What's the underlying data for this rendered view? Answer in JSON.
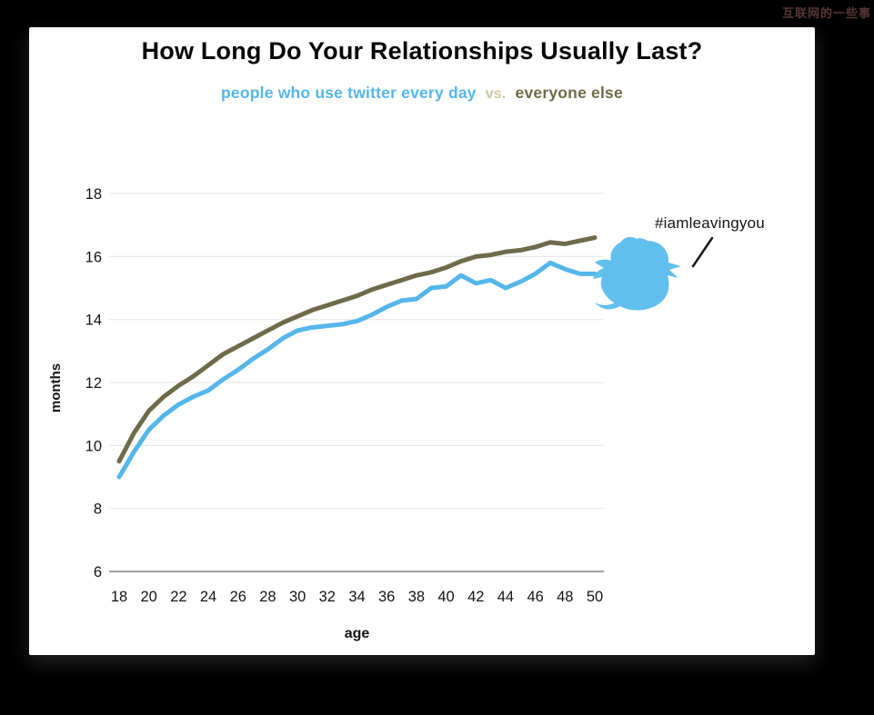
{
  "watermark": "互联网的一些事",
  "title": "How Long Do Your Relationships Usually Last?",
  "subtitle": {
    "twitter_label": "people who use twitter every day",
    "vs_label": "vs.",
    "else_label": "everyone else"
  },
  "annotation": {
    "hashtag": "#iamleavingyou"
  },
  "colors": {
    "twitter_line": "#55b6ea",
    "everyone_line": "#6f6b4a",
    "vs_text": "#ccc5a3",
    "gridline": "#e8e8e8",
    "axis_line": "#8a8a8a",
    "tick_text": "#141414",
    "bird_blue": "#61bfee",
    "pointer_line": "#1a1a1a"
  },
  "chart_data": {
    "type": "line",
    "title": "How Long Do Your Relationships Usually Last?",
    "xlabel": "age",
    "ylabel": "months",
    "x": [
      18,
      19,
      20,
      21,
      22,
      23,
      24,
      25,
      26,
      27,
      28,
      29,
      30,
      31,
      32,
      33,
      34,
      35,
      36,
      37,
      38,
      39,
      40,
      41,
      42,
      43,
      44,
      45,
      46,
      47,
      48,
      49,
      50
    ],
    "series": [
      {
        "name": "everyone else",
        "color": "#6f6b4a",
        "values": [
          9.5,
          10.4,
          11.1,
          11.55,
          11.9,
          12.2,
          12.55,
          12.9,
          13.15,
          13.4,
          13.65,
          13.9,
          14.1,
          14.3,
          14.45,
          14.6,
          14.75,
          14.95,
          15.1,
          15.25,
          15.4,
          15.5,
          15.65,
          15.85,
          16.0,
          16.05,
          16.15,
          16.2,
          16.3,
          16.45,
          16.4,
          16.5,
          16.6
        ]
      },
      {
        "name": "people who use twitter every day",
        "color": "#55b6ea",
        "values": [
          9.0,
          9.8,
          10.5,
          10.95,
          11.3,
          11.55,
          11.75,
          12.1,
          12.4,
          12.75,
          13.05,
          13.4,
          13.65,
          13.75,
          13.8,
          13.85,
          13.95,
          14.15,
          14.4,
          14.6,
          14.65,
          15.0,
          15.05,
          15.4,
          15.15,
          15.25,
          15.0,
          15.2,
          15.45,
          15.8,
          15.6,
          15.45,
          15.45
        ]
      }
    ],
    "ylim": [
      6,
      18
    ],
    "yticks": [
      6,
      8,
      10,
      12,
      14,
      16,
      18
    ],
    "xticks": [
      18,
      20,
      22,
      24,
      26,
      28,
      30,
      32,
      34,
      36,
      38,
      40,
      42,
      44,
      46,
      48,
      50
    ],
    "grid": "horizontal",
    "legend_position": "subtitle"
  }
}
